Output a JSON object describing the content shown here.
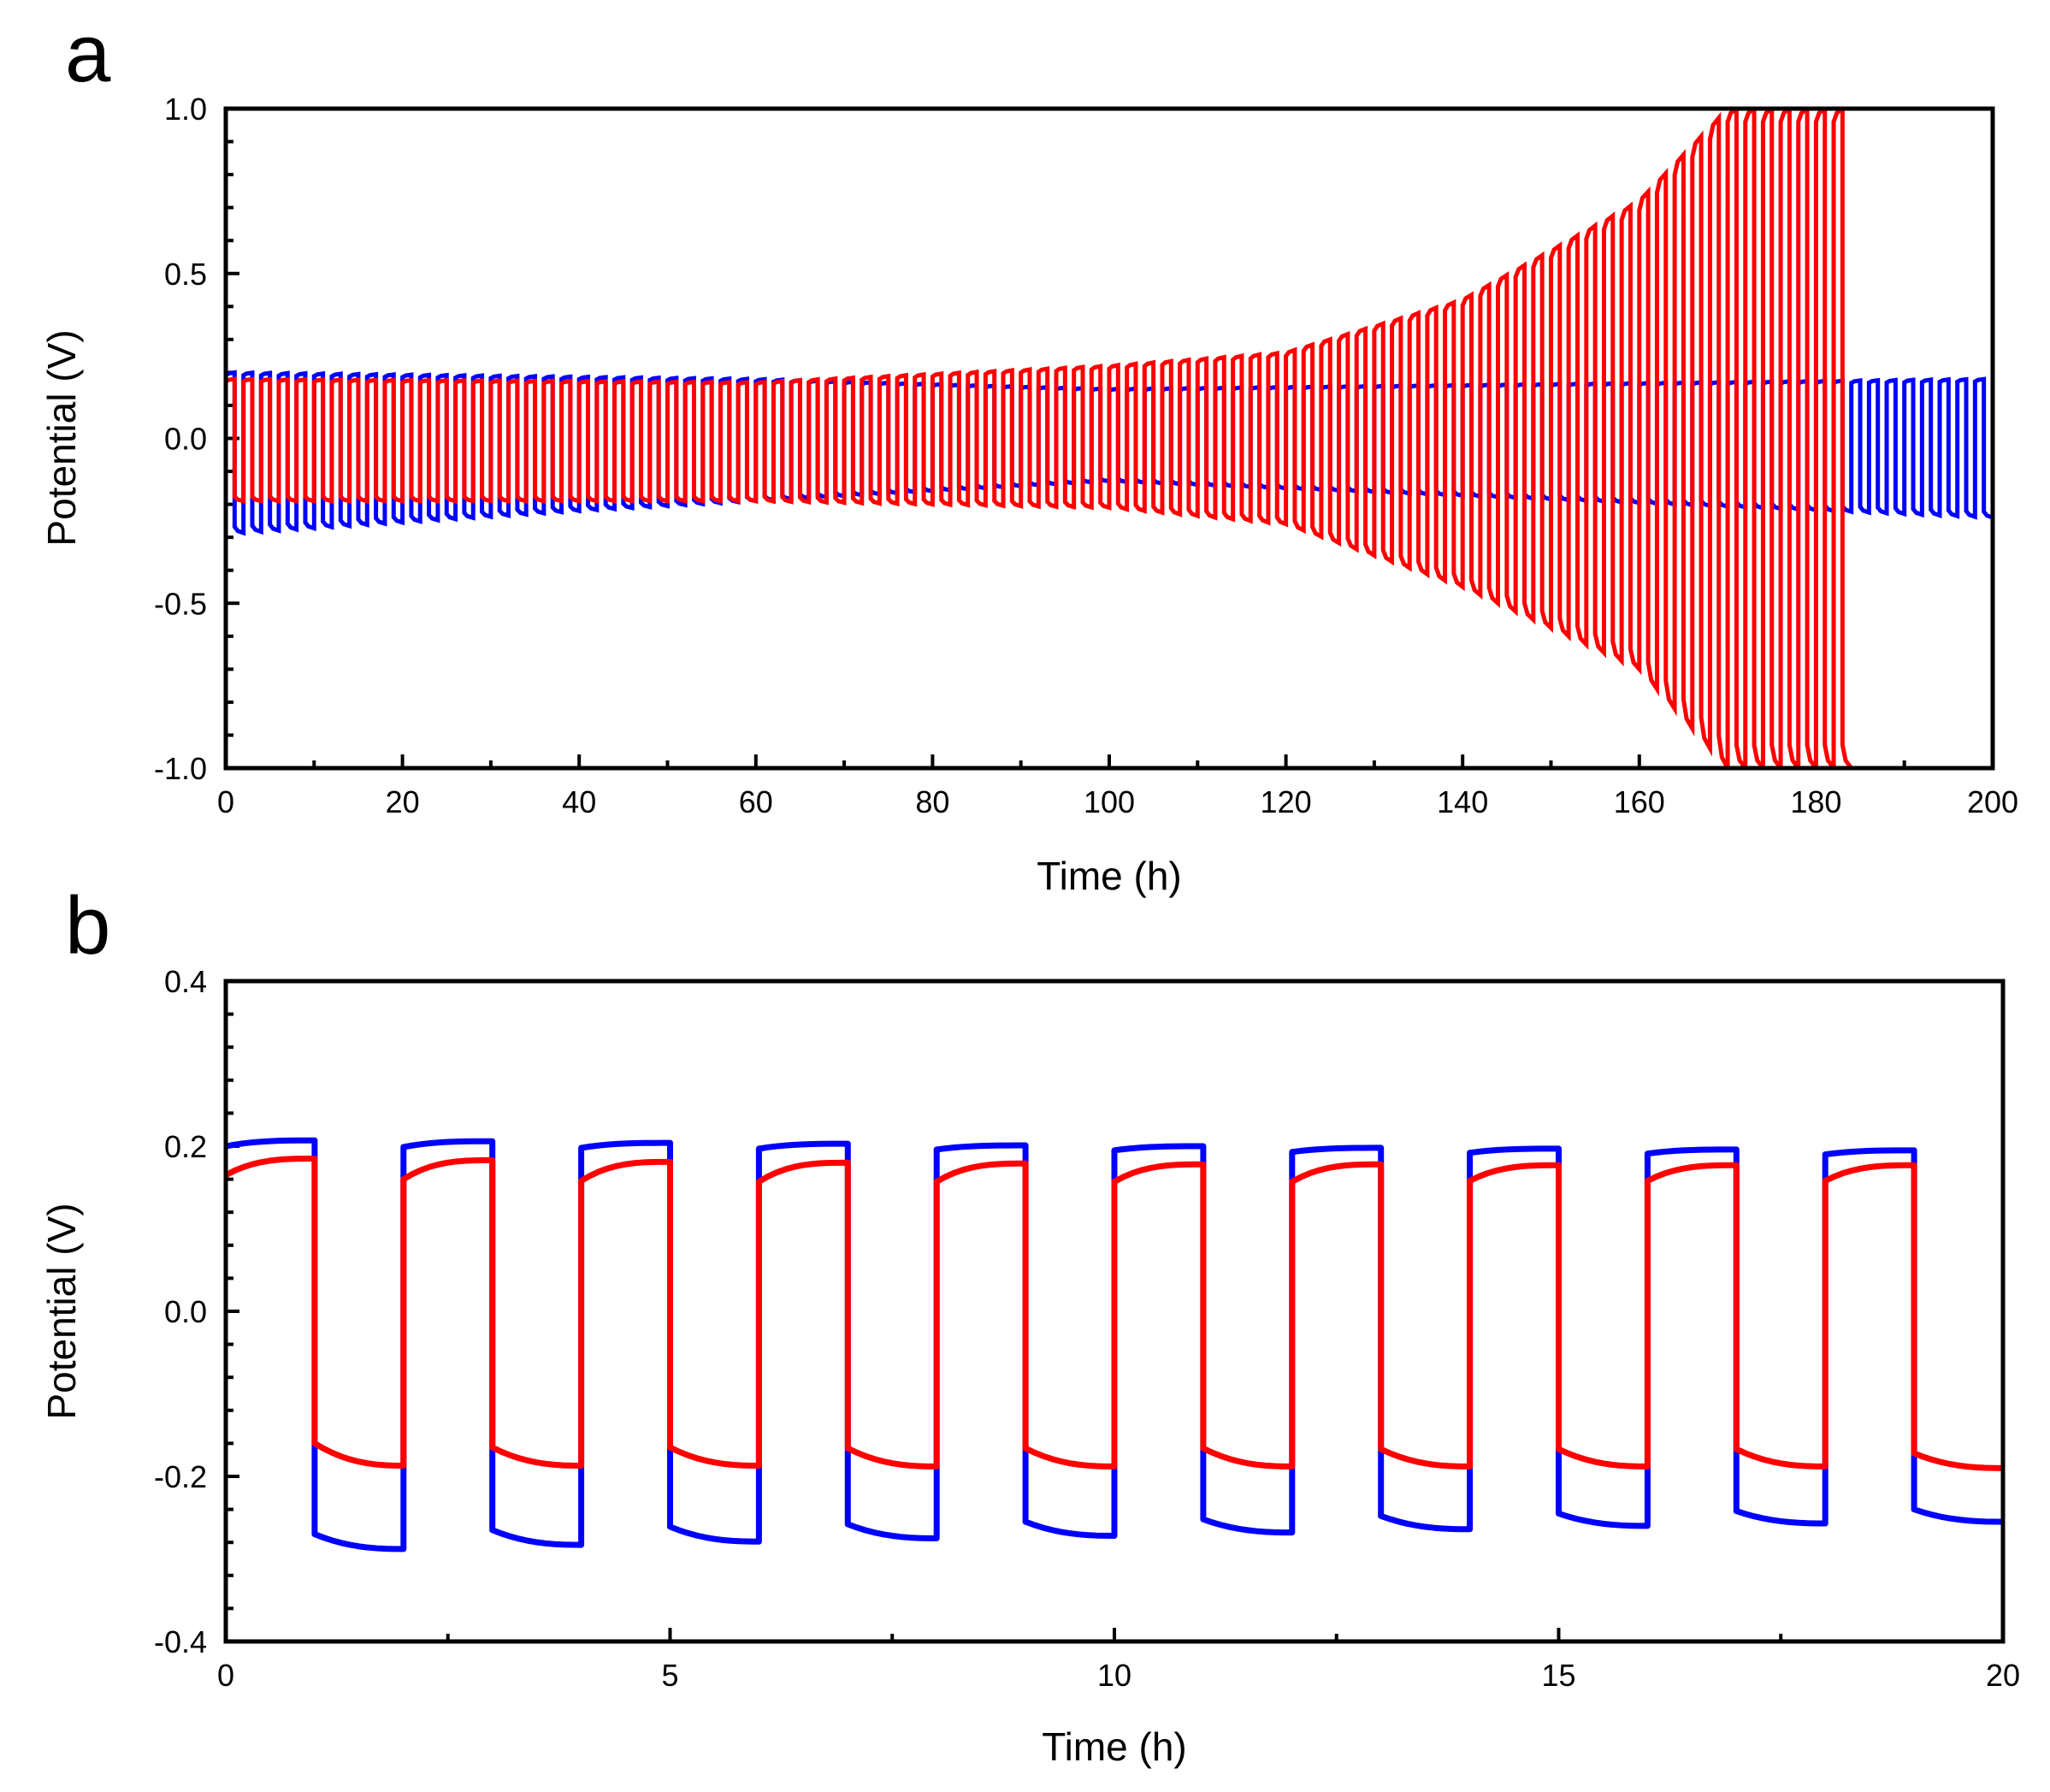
{
  "panels": [
    {
      "letter": "a",
      "xlabel": "Time (h)",
      "ylabel": "Potential (V)",
      "xticks": [
        "0",
        "20",
        "40",
        "60",
        "80",
        "100",
        "120",
        "140",
        "160",
        "180",
        "200"
      ],
      "yticks": [
        "1.0",
        "0.5",
        "0.0",
        "-0.5",
        "-1.0"
      ]
    },
    {
      "letter": "b",
      "xlabel": "Time (h)",
      "ylabel": "Potential (V)",
      "xticks": [
        "0",
        "5",
        "10",
        "15",
        "20"
      ],
      "yticks": [
        "0.4",
        "0.2",
        "0.0",
        "-0.2",
        "-0.4"
      ]
    }
  ],
  "chart_data": [
    {
      "type": "line",
      "panel": "a",
      "xlabel": "Time (h)",
      "ylabel": "Potential (V)",
      "xlim": [
        0,
        200
      ],
      "ylim": [
        -1.0,
        1.0
      ],
      "x_major_step": 20,
      "y_major_step": 0.5,
      "cycle_period_h": 2,
      "series": [
        {
          "name": "blue",
          "color": "#0000ff",
          "end_time_h": 200,
          "positive_plateau": {
            "t": [
              0,
              60,
              100,
              200
            ],
            "v": [
              0.2,
              0.18,
              0.15,
              0.18
            ]
          },
          "negative_plateau": {
            "t": [
              0,
              40,
              100,
              200
            ],
            "v": [
              -0.29,
              -0.22,
              -0.13,
              -0.24
            ]
          }
        },
        {
          "name": "red",
          "color": "#ff0000",
          "end_time_h": 184,
          "positive_plateau": {
            "t": [
              0,
              60,
              100,
              120,
              140,
              160,
              170,
              184
            ],
            "v": [
              0.18,
              0.17,
              0.22,
              0.26,
              0.42,
              0.72,
              1.0,
              1.0
            ]
          },
          "negative_plateau": {
            "t": [
              0,
              60,
              100,
              120,
              140,
              160,
              170,
              184
            ],
            "v": [
              -0.19,
              -0.19,
              -0.21,
              -0.26,
              -0.45,
              -0.7,
              -1.0,
              -1.0
            ]
          }
        }
      ]
    },
    {
      "type": "line",
      "panel": "b",
      "xlabel": "Time (h)",
      "ylabel": "Potential (V)",
      "xlim": [
        0,
        20
      ],
      "ylim": [
        -0.4,
        0.4
      ],
      "x_major_step": 5,
      "y_major_step": 0.2,
      "cycle_period_h": 2,
      "half_cycle_h": 1,
      "series": [
        {
          "name": "blue",
          "color": "#0000ff",
          "cycles": [
            {
              "pos_start": 0.2,
              "pos_end": 0.207,
              "neg_start": -0.27,
              "neg_end": -0.288
            },
            {
              "pos_start": 0.199,
              "pos_end": 0.206,
              "neg_start": -0.265,
              "neg_end": -0.283
            },
            {
              "pos_start": 0.198,
              "pos_end": 0.204,
              "neg_start": -0.261,
              "neg_end": -0.279
            },
            {
              "pos_start": 0.197,
              "pos_end": 0.203,
              "neg_start": -0.258,
              "neg_end": -0.275
            },
            {
              "pos_start": 0.196,
              "pos_end": 0.201,
              "neg_start": -0.255,
              "neg_end": -0.272
            },
            {
              "pos_start": 0.195,
              "pos_end": 0.2,
              "neg_start": -0.252,
              "neg_end": -0.268
            },
            {
              "pos_start": 0.193,
              "pos_end": 0.198,
              "neg_start": -0.248,
              "neg_end": -0.264
            },
            {
              "pos_start": 0.192,
              "pos_end": 0.197,
              "neg_start": -0.245,
              "neg_end": -0.26
            },
            {
              "pos_start": 0.191,
              "pos_end": 0.196,
              "neg_start": -0.242,
              "neg_end": -0.257
            },
            {
              "pos_start": 0.19,
              "pos_end": 0.195,
              "neg_start": -0.24,
              "neg_end": -0.255
            }
          ]
        },
        {
          "name": "red",
          "color": "#ff0000",
          "cycles": [
            {
              "pos_start": 0.165,
              "pos_end": 0.185,
              "neg_start": -0.16,
              "neg_end": -0.187
            },
            {
              "pos_start": 0.16,
              "pos_end": 0.183,
              "neg_start": -0.165,
              "neg_end": -0.187
            },
            {
              "pos_start": 0.158,
              "pos_end": 0.181,
              "neg_start": -0.165,
              "neg_end": -0.187
            },
            {
              "pos_start": 0.157,
              "pos_end": 0.18,
              "neg_start": -0.166,
              "neg_end": -0.188
            },
            {
              "pos_start": 0.157,
              "pos_end": 0.179,
              "neg_start": -0.166,
              "neg_end": -0.188
            },
            {
              "pos_start": 0.157,
              "pos_end": 0.178,
              "neg_start": -0.166,
              "neg_end": -0.188
            },
            {
              "pos_start": 0.157,
              "pos_end": 0.178,
              "neg_start": -0.167,
              "neg_end": -0.188
            },
            {
              "pos_start": 0.158,
              "pos_end": 0.177,
              "neg_start": -0.167,
              "neg_end": -0.188
            },
            {
              "pos_start": 0.158,
              "pos_end": 0.177,
              "neg_start": -0.167,
              "neg_end": -0.188
            },
            {
              "pos_start": 0.158,
              "pos_end": 0.177,
              "neg_start": -0.172,
              "neg_end": -0.19
            }
          ]
        }
      ]
    }
  ]
}
